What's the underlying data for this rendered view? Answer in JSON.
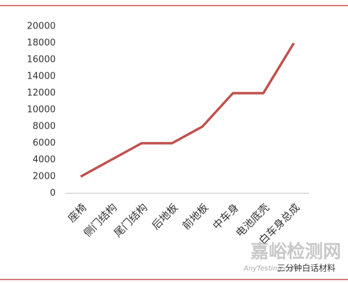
{
  "chart_data": {
    "type": "line",
    "categories": [
      "座椅",
      "侧门结构",
      "尾门结构",
      "后地板",
      "前地板",
      "中车身",
      "电池底壳",
      "白车身总成"
    ],
    "series": [
      {
        "color": "#c0504d",
        "values": [
          2000,
          4000,
          6000,
          6000,
          8000,
          12000,
          12000,
          18000
        ]
      }
    ],
    "ylim": [
      0,
      20000
    ],
    "yticks": [
      0,
      2000,
      4000,
      6000,
      8000,
      10000,
      12000,
      14000,
      16000,
      18000,
      20000
    ],
    "grid": false
  },
  "watermark": {
    "site": "嘉峪检测网",
    "domain": "AnyTesting.com",
    "account": "三分钟白话材料"
  }
}
